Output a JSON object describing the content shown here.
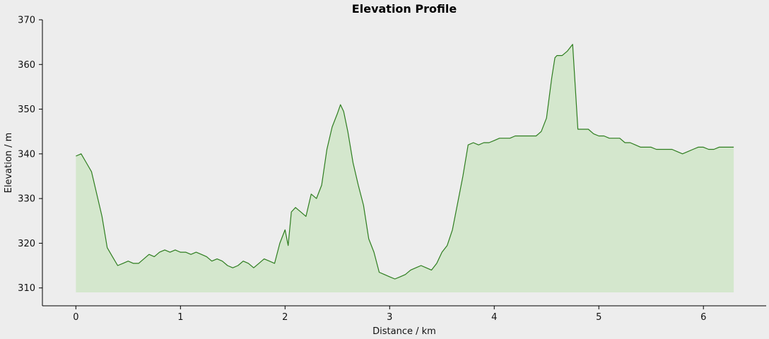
{
  "chart_data": {
    "type": "area",
    "title": "Elevation Profile",
    "xlabel": "Distance / km",
    "ylabel": "Elevation / m",
    "xlim": [
      -0.32,
      6.6
    ],
    "ylim": [
      306,
      370
    ],
    "xticks": [
      0,
      1,
      2,
      3,
      4,
      5,
      6
    ],
    "yticks": [
      310,
      320,
      330,
      340,
      350,
      360,
      370
    ],
    "fill_baseline": 309,
    "grid": false,
    "colors": {
      "line": "#2e7d1f",
      "fill": "#d4e7cd",
      "background": "#ededed"
    },
    "series": [
      {
        "x": [
          0,
          0.05,
          0.1,
          0.15,
          0.2,
          0.25,
          0.3,
          0.35,
          0.4,
          0.45,
          0.5,
          0.55,
          0.6,
          0.65,
          0.7,
          0.75,
          0.8,
          0.85,
          0.9,
          0.95,
          1.0,
          1.05,
          1.1,
          1.15,
          1.2,
          1.25,
          1.3,
          1.35,
          1.4,
          1.45,
          1.5,
          1.55,
          1.6,
          1.65,
          1.7,
          1.75,
          1.8,
          1.85,
          1.9,
          1.95,
          2.0,
          2.03,
          2.06,
          2.1,
          2.15,
          2.2,
          2.25,
          2.3,
          2.35,
          2.4,
          2.45,
          2.5,
          2.53,
          2.56,
          2.6,
          2.65,
          2.7,
          2.75,
          2.8,
          2.85,
          2.9,
          2.95,
          3.0,
          3.05,
          3.1,
          3.15,
          3.2,
          3.25,
          3.3,
          3.35,
          3.4,
          3.45,
          3.5,
          3.55,
          3.6,
          3.65,
          3.7,
          3.75,
          3.8,
          3.85,
          3.9,
          3.95,
          4.0,
          4.05,
          4.1,
          4.15,
          4.2,
          4.25,
          4.3,
          4.35,
          4.4,
          4.45,
          4.5,
          4.55,
          4.58,
          4.6,
          4.65,
          4.7,
          4.75,
          4.78,
          4.8,
          4.85,
          4.9,
          4.95,
          5.0,
          5.05,
          5.1,
          5.15,
          5.2,
          5.25,
          5.3,
          5.35,
          5.4,
          5.45,
          5.5,
          5.55,
          5.6,
          5.65,
          5.7,
          5.75,
          5.8,
          5.85,
          5.9,
          5.95,
          6.0,
          6.05,
          6.1,
          6.15,
          6.2,
          6.25,
          6.29
        ],
        "y": [
          339.5,
          340,
          338,
          336,
          331,
          326,
          319,
          317,
          315,
          315.5,
          316,
          315.5,
          315.5,
          316.5,
          317.5,
          317,
          318,
          318.5,
          318,
          318.5,
          318,
          318,
          317.5,
          318,
          317.5,
          317,
          316,
          316.5,
          316,
          315,
          314.5,
          315,
          316,
          315.5,
          314.5,
          315.5,
          316.5,
          316,
          315.5,
          320,
          323,
          319.5,
          327,
          328,
          327,
          326,
          331,
          330,
          333,
          341,
          346,
          349,
          351,
          349.5,
          345,
          338,
          333,
          328.5,
          321,
          318,
          313.5,
          313,
          312.5,
          312,
          312.5,
          313,
          314,
          314.5,
          315,
          314.5,
          314,
          315.5,
          318,
          319.5,
          323,
          329,
          335,
          342,
          342.5,
          342,
          342.5,
          342.5,
          343,
          343.5,
          343.5,
          343.5,
          344,
          344,
          344,
          344,
          344,
          345,
          348,
          357,
          361.5,
          362,
          362,
          363,
          364.5,
          353,
          345.5,
          345.5,
          345.5,
          344.5,
          344,
          344,
          343.5,
          343.5,
          343.5,
          342.5,
          342.5,
          342,
          341.5,
          341.5,
          341.5,
          341,
          341,
          341,
          341,
          340.5,
          340,
          340.5,
          341,
          341.5,
          341.5,
          341,
          341,
          341.5,
          341.5,
          341.5,
          341.5
        ]
      }
    ]
  }
}
